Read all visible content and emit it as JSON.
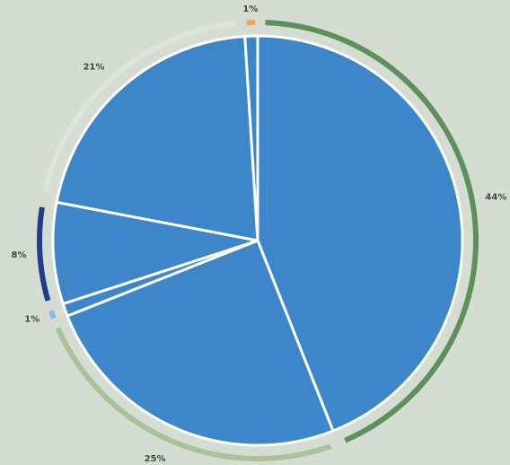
{
  "chart_data": {
    "type": "pie",
    "categories": [
      null,
      null,
      null,
      null,
      null,
      null
    ],
    "values": [
      44,
      25,
      1,
      8,
      21,
      1
    ],
    "value_labels": [
      "44%",
      "25%",
      "1%",
      "8%",
      "21%",
      "1%"
    ],
    "colors": [
      "#5e8f5c",
      "#a9c29c",
      "#8dbbe0",
      "#1f3d8c",
      "#dde5d6",
      "#eea84a"
    ],
    "pie_color": "#3d86c9"
  }
}
